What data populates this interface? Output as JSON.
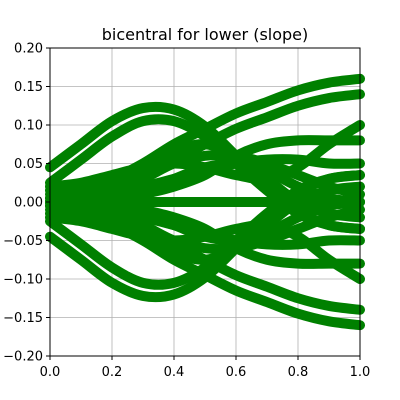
{
  "chart_data": {
    "type": "line",
    "title": "bicentral for lower (slope)",
    "xlabel": "",
    "ylabel": "",
    "xlim": [
      0.0,
      1.0
    ],
    "ylim": [
      -0.2,
      0.2
    ],
    "grid": true,
    "x_ticks": [
      0.0,
      0.2,
      0.4,
      0.6,
      0.8,
      1.0
    ],
    "y_ticks": [
      -0.2,
      -0.15,
      -0.1,
      -0.05,
      0.0,
      0.05,
      0.1,
      0.15,
      0.2
    ],
    "x_tick_labels": [
      "0.0",
      "0.2",
      "0.4",
      "0.6",
      "0.8",
      "1.0"
    ],
    "y_tick_labels": [
      "−0.20",
      "−0.15",
      "−0.10",
      "−0.05",
      "0.00",
      "0.05",
      "0.10",
      "0.15",
      "0.20"
    ],
    "color": "#008000",
    "x": [
      0.0,
      0.1,
      0.2,
      0.3,
      0.4,
      0.5,
      0.6,
      0.7,
      0.8,
      0.9,
      1.0
    ],
    "series": [
      {
        "values": [
          0.045,
          0.075,
          0.105,
          0.122,
          0.12,
          0.098,
          0.06,
          0.02,
          -0.012,
          -0.03,
          -0.035
        ]
      },
      {
        "values": [
          0.025,
          0.055,
          0.085,
          0.105,
          0.105,
          0.085,
          0.05,
          0.015,
          -0.015,
          -0.03,
          -0.035
        ]
      },
      {
        "values": [
          -0.045,
          -0.075,
          -0.105,
          -0.122,
          -0.12,
          -0.098,
          -0.06,
          -0.02,
          0.012,
          0.03,
          0.035
        ]
      },
      {
        "values": [
          -0.025,
          -0.055,
          -0.085,
          -0.105,
          -0.105,
          -0.085,
          -0.05,
          -0.015,
          0.015,
          0.03,
          0.035
        ]
      },
      {
        "values": [
          0.015,
          0.02,
          0.03,
          0.05,
          0.075,
          0.095,
          0.115,
          0.13,
          0.145,
          0.155,
          0.16
        ]
      },
      {
        "values": [
          0.005,
          0.01,
          0.02,
          0.035,
          0.055,
          0.075,
          0.095,
          0.11,
          0.125,
          0.135,
          0.14
        ]
      },
      {
        "values": [
          -0.015,
          -0.02,
          -0.03,
          -0.05,
          -0.075,
          -0.095,
          -0.115,
          -0.13,
          -0.145,
          -0.155,
          -0.16
        ]
      },
      {
        "values": [
          -0.005,
          -0.01,
          -0.02,
          -0.035,
          -0.055,
          -0.075,
          -0.095,
          -0.11,
          -0.125,
          -0.135,
          -0.14
        ]
      },
      {
        "values": [
          0.0,
          0.005,
          0.015,
          0.03,
          0.05,
          0.06,
          0.06,
          0.05,
          0.035,
          0.02,
          0.01
        ]
      },
      {
        "values": [
          0.0,
          -0.005,
          -0.015,
          -0.03,
          -0.05,
          -0.06,
          -0.06,
          -0.05,
          -0.035,
          -0.02,
          -0.01
        ]
      },
      {
        "values": [
          0.02,
          0.025,
          0.035,
          0.045,
          0.05,
          0.045,
          0.035,
          0.03,
          0.045,
          0.075,
          0.1
        ]
      },
      {
        "values": [
          -0.02,
          -0.025,
          -0.035,
          -0.045,
          -0.05,
          -0.045,
          -0.035,
          -0.03,
          -0.045,
          -0.075,
          -0.1
        ]
      },
      {
        "values": [
          0.01,
          0.012,
          0.015,
          0.02,
          0.03,
          0.04,
          0.05,
          0.055,
          0.055,
          0.05,
          0.05
        ]
      },
      {
        "values": [
          -0.01,
          -0.012,
          -0.015,
          -0.02,
          -0.03,
          -0.04,
          -0.05,
          -0.055,
          -0.055,
          -0.05,
          -0.05
        ]
      },
      {
        "values": [
          0.0,
          0.002,
          0.005,
          0.015,
          0.03,
          0.045,
          0.05,
          0.04,
          0.02,
          0.005,
          0.0
        ]
      },
      {
        "values": [
          0.0,
          -0.002,
          -0.005,
          -0.015,
          -0.03,
          -0.045,
          -0.05,
          -0.04,
          -0.02,
          -0.005,
          0.0
        ]
      },
      {
        "values": [
          0.0,
          0.0,
          0.0,
          0.0,
          0.0,
          0.0,
          0.0,
          0.0,
          0.0,
          0.0,
          0.0
        ]
      },
      {
        "values": [
          0.005,
          0.01,
          0.02,
          0.04,
          0.065,
          0.075,
          0.06,
          0.03,
          0.0,
          -0.015,
          -0.02
        ]
      },
      {
        "values": [
          -0.005,
          -0.01,
          -0.02,
          -0.04,
          -0.065,
          -0.075,
          -0.06,
          -0.03,
          0.0,
          0.015,
          0.02
        ]
      },
      {
        "values": [
          0.0,
          0.0,
          0.002,
          0.01,
          0.02,
          0.035,
          0.06,
          0.075,
          0.08,
          0.08,
          0.08
        ]
      },
      {
        "values": [
          0.0,
          0.0,
          -0.002,
          -0.01,
          -0.02,
          -0.035,
          -0.06,
          -0.075,
          -0.08,
          -0.08,
          -0.08
        ]
      }
    ]
  }
}
